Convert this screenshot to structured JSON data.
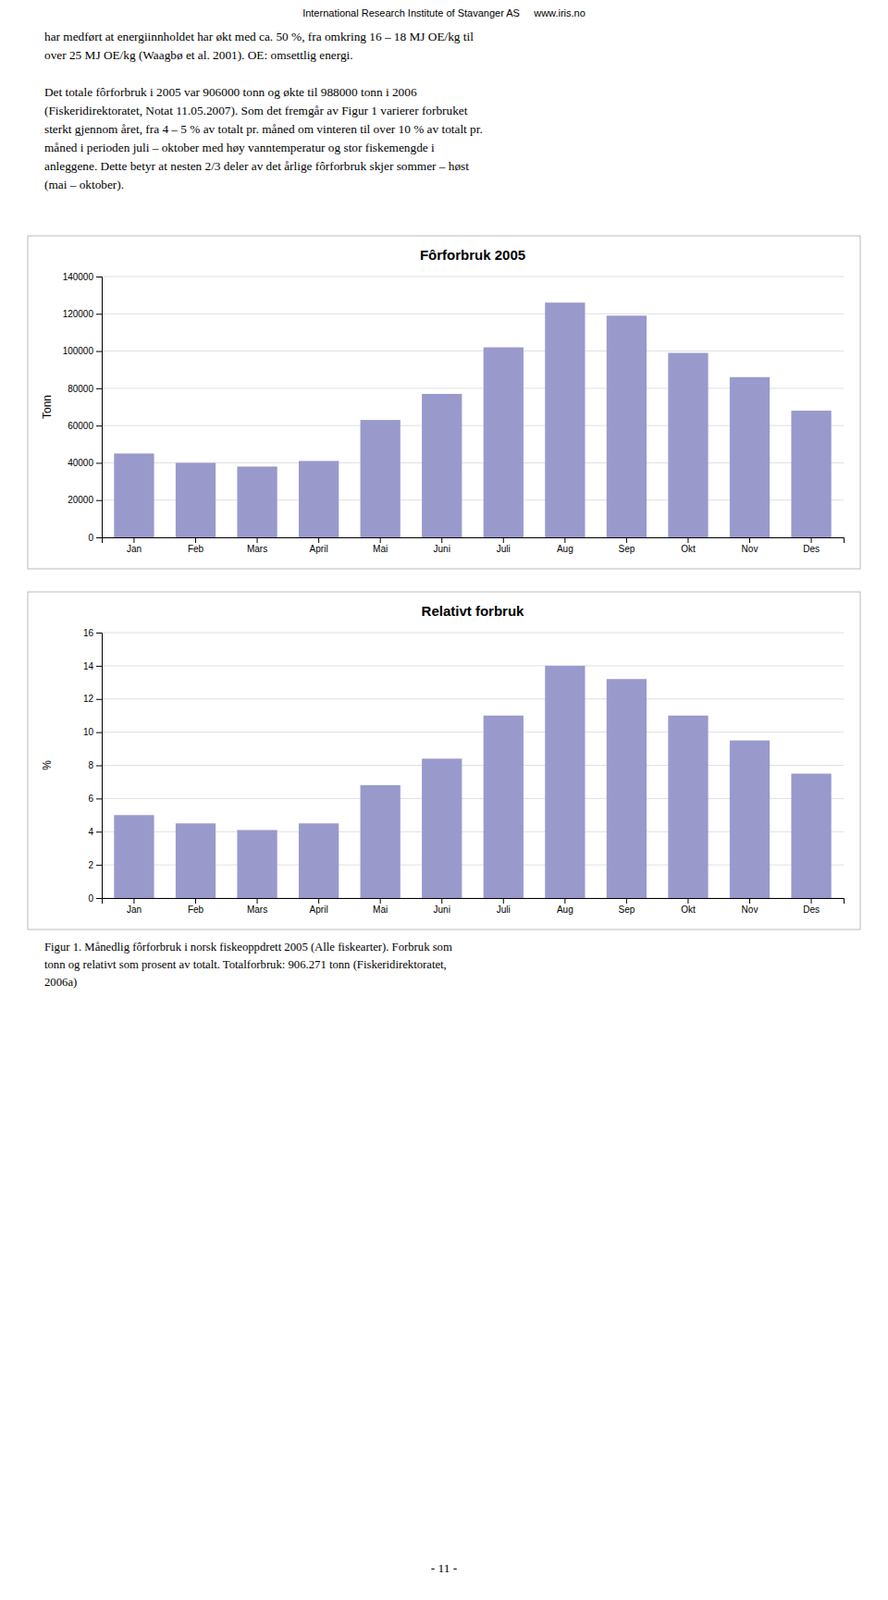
{
  "header": "International Research Institute of Stavanger AS     www.iris.no",
  "paragraphs": [
    [
      "har medført at energiinnholdet har økt med ca. 50 %, fra omkring 16 – 18 MJ OE/kg til",
      "over 25 MJ OE/kg (Waagbø et al. 2001). OE: omsettlig energi."
    ],
    [
      "Det totale fôrforbruk i 2005 var 906000 tonn og økte til 988000 tonn i 2006",
      "(Fiskeridirektoratet, Notat 11.05.2007). Som det fremgår av Figur 1 varierer forbruket",
      "sterkt gjennom året, fra 4 – 5 % av totalt pr. måned om vinteren til over 10 % av totalt pr.",
      "måned i perioden juli – oktober med høy vanntemperatur og stor fiskemengde i",
      "anleggene. Dette betyr at nesten 2/3 deler av det årlige fôrforbruk skjer sommer – høst",
      "(mai – oktober)."
    ]
  ],
  "chart_data": [
    {
      "type": "bar",
      "title": "Fôrforbruk 2005",
      "y_label": "Tonn",
      "categories": [
        "Jan",
        "Feb",
        "Mars",
        "April",
        "Mai",
        "Juni",
        "Juli",
        "Aug",
        "Sep",
        "Okt",
        "Nov",
        "Des"
      ],
      "values": [
        45000,
        40000,
        38000,
        41000,
        63000,
        77000,
        102000,
        126000,
        119000,
        99000,
        86000,
        68000
      ],
      "color": "#9999cc",
      "ylim": [
        0,
        140000
      ],
      "yticks": [
        0,
        20000,
        40000,
        60000,
        80000,
        100000,
        120000,
        140000
      ],
      "grid": true
    },
    {
      "type": "bar",
      "title": "Relativt forbruk",
      "y_label": "%",
      "categories": [
        "Jan",
        "Feb",
        "Mars",
        "April",
        "Mai",
        "Juni",
        "Juli",
        "Aug",
        "Sep",
        "Okt",
        "Nov",
        "Des"
      ],
      "values": [
        5.0,
        4.5,
        4.1,
        4.5,
        6.8,
        8.4,
        11.0,
        14.0,
        13.2,
        11.0,
        9.5,
        7.5
      ],
      "color": "#9999cc",
      "ylim": [
        0,
        16
      ],
      "yticks": [
        0,
        2,
        4,
        6,
        8,
        10,
        12,
        14,
        16
      ],
      "grid": true
    }
  ],
  "caption": [
    "Figur 1. Månedlig fôrforbruk i norsk fiskeoppdrett 2005 (Alle fiskearter). Forbruk som",
    "tonn og relativt som prosent av totalt. Totalforbruk: 906.271 tonn (Fiskeridirektoratet,",
    "2006a)"
  ],
  "page_number": "- 11 -"
}
